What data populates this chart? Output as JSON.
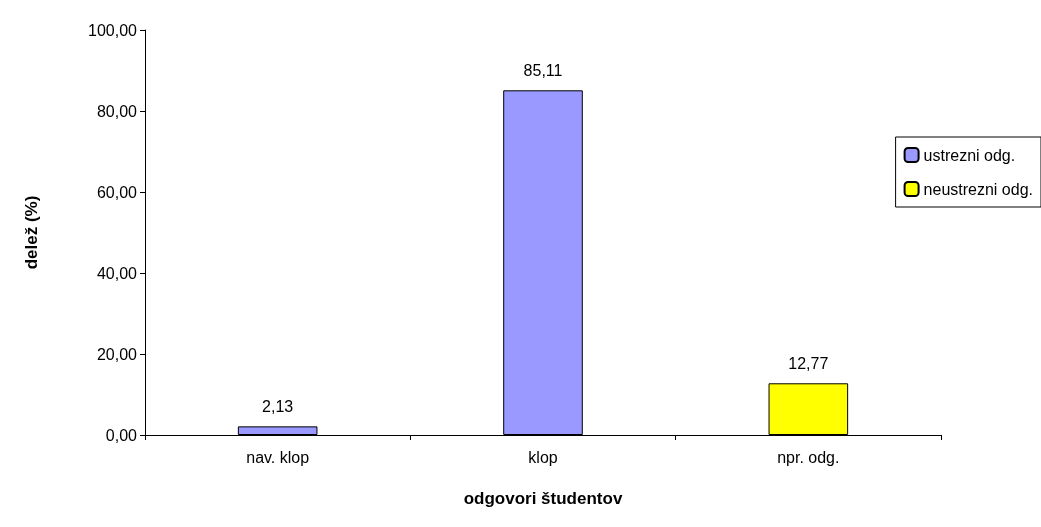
{
  "chart_data": {
    "type": "bar",
    "xlabel": "odgovori študentov",
    "ylabel": "delež (%)",
    "categories": [
      "nav. klop",
      "klop",
      "npr. odg."
    ],
    "series": [
      {
        "name": "ustrezni odg.",
        "color": "#9999ff",
        "values": [
          2.13,
          85.11,
          null
        ],
        "value_labels": [
          "2,13",
          "85,11",
          null
        ]
      },
      {
        "name": "neustrezni odg.",
        "color": "#ffff00",
        "values": [
          null,
          null,
          12.77
        ],
        "value_labels": [
          null,
          null,
          "12,77"
        ]
      }
    ],
    "ylim": [
      0,
      100
    ],
    "yticks": [
      {
        "value": 0,
        "label": "0,00"
      },
      {
        "value": 20,
        "label": "20,00"
      },
      {
        "value": 40,
        "label": "40,00"
      },
      {
        "value": 60,
        "label": "60,00"
      },
      {
        "value": 80,
        "label": "80,00"
      },
      {
        "value": 100,
        "label": "100,00"
      }
    ],
    "grid": false,
    "legend": "right"
  }
}
